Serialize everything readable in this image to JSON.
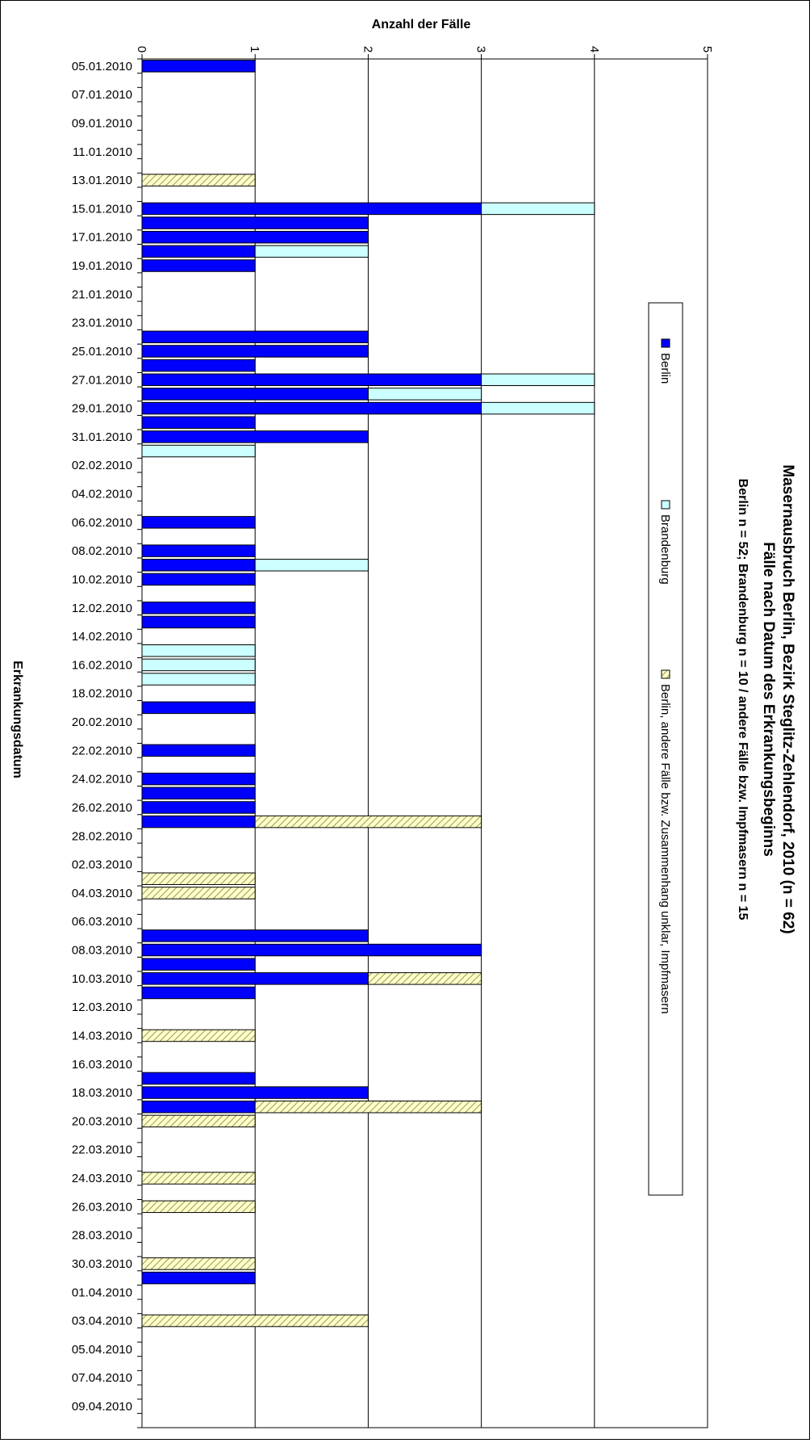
{
  "chart_data": {
    "type": "bar",
    "orientation": "horizontal",
    "stacked": true,
    "title": "Masernausbruch Berlin, Bezirk Steglitz-Zehlendorf, 2010 (n = 62)",
    "subtitle": "Fälle nach Datum des Erkrankungsbeginns",
    "subtitle2": "Berlin n = 52; Brandenburg n = 10 / andere Fälle bzw. Impfmasern n = 15",
    "xlabel": "Anzahl der Fälle",
    "ylabel": "Erkrankungsdatum",
    "xlim": [
      0,
      5
    ],
    "xticks": [
      "0",
      "1",
      "2",
      "3",
      "4",
      "5"
    ],
    "grid": true,
    "legend_position": "right",
    "categories": [
      "05.01.2010",
      "06.01.2010",
      "07.01.2010",
      "08.01.2010",
      "09.01.2010",
      "10.01.2010",
      "11.01.2010",
      "12.01.2010",
      "13.01.2010",
      "14.01.2010",
      "15.01.2010",
      "16.01.2010",
      "17.01.2010",
      "18.01.2010",
      "19.01.2010",
      "20.01.2010",
      "21.01.2010",
      "22.01.2010",
      "23.01.2010",
      "24.01.2010",
      "25.01.2010",
      "26.01.2010",
      "27.01.2010",
      "28.01.2010",
      "29.01.2010",
      "30.01.2010",
      "31.01.2010",
      "01.02.2010",
      "02.02.2010",
      "03.02.2010",
      "04.02.2010",
      "05.02.2010",
      "06.02.2010",
      "07.02.2010",
      "08.02.2010",
      "09.02.2010",
      "10.02.2010",
      "11.02.2010",
      "12.02.2010",
      "13.02.2010",
      "14.02.2010",
      "15.02.2010",
      "16.02.2010",
      "17.02.2010",
      "18.02.2010",
      "19.02.2010",
      "20.02.2010",
      "21.02.2010",
      "22.02.2010",
      "23.02.2010",
      "24.02.2010",
      "25.02.2010",
      "26.02.2010",
      "27.02.2010",
      "28.02.2010",
      "01.03.2010",
      "02.03.2010",
      "03.03.2010",
      "04.03.2010",
      "05.03.2010",
      "06.03.2010",
      "07.03.2010",
      "08.03.2010",
      "09.03.2010",
      "10.03.2010",
      "11.03.2010",
      "12.03.2010",
      "13.03.2010",
      "14.03.2010",
      "15.03.2010",
      "16.03.2010",
      "17.03.2010",
      "18.03.2010",
      "19.03.2010",
      "20.03.2010",
      "21.03.2010",
      "22.03.2010",
      "23.03.2010",
      "24.03.2010",
      "25.03.2010",
      "26.03.2010",
      "27.03.2010",
      "28.03.2010",
      "29.03.2010",
      "30.03.2010",
      "31.03.2010",
      "01.04.2010",
      "02.04.2010",
      "03.04.2010",
      "04.04.2010",
      "05.04.2010",
      "06.04.2010",
      "07.04.2010",
      "08.04.2010",
      "09.04.2010",
      "10.04.2010"
    ],
    "series": [
      {
        "name": "Berlin",
        "color": "#0000ff",
        "pattern": "solid",
        "values": [
          1,
          0,
          0,
          0,
          0,
          0,
          0,
          0,
          0,
          0,
          3,
          2,
          2,
          1,
          1,
          0,
          0,
          0,
          0,
          2,
          2,
          1,
          3,
          2,
          3,
          1,
          2,
          0,
          0,
          0,
          0,
          0,
          1,
          0,
          1,
          1,
          1,
          0,
          1,
          1,
          0,
          0,
          0,
          0,
          0,
          1,
          0,
          0,
          1,
          0,
          1,
          1,
          1,
          1,
          0,
          0,
          0,
          0,
          0,
          0,
          0,
          2,
          3,
          1,
          2,
          1,
          0,
          0,
          0,
          0,
          0,
          1,
          2,
          1,
          0,
          0,
          0,
          0,
          0,
          0,
          0,
          0,
          0,
          0,
          0,
          1,
          0,
          0,
          0,
          0,
          0,
          0,
          0,
          0,
          0,
          0
        ]
      },
      {
        "name": "Brandenburg",
        "color": "#ccffff",
        "pattern": "solid",
        "values": [
          0,
          0,
          0,
          0,
          0,
          0,
          0,
          0,
          0,
          0,
          1,
          0,
          0,
          1,
          0,
          0,
          0,
          0,
          0,
          0,
          0,
          0,
          1,
          1,
          1,
          0,
          0,
          1,
          0,
          0,
          0,
          0,
          0,
          0,
          0,
          1,
          0,
          0,
          0,
          0,
          0,
          1,
          1,
          1,
          0,
          0,
          0,
          0,
          0,
          0,
          0,
          0,
          0,
          0,
          0,
          0,
          0,
          0,
          0,
          0,
          0,
          0,
          0,
          0,
          0,
          0,
          0,
          0,
          0,
          0,
          0,
          0,
          0,
          0,
          0,
          0,
          0,
          0,
          0,
          0,
          0,
          0,
          0,
          0,
          0,
          0,
          0,
          0,
          0,
          0,
          0,
          0,
          0,
          0,
          0,
          0
        ]
      },
      {
        "name": "Berlin, andere Fälle bzw. Zusammenhang unklar, Impfmasern",
        "color": "#ffffcc",
        "pattern": "hatched",
        "values": [
          0,
          0,
          0,
          0,
          0,
          0,
          0,
          0,
          1,
          0,
          0,
          0,
          0,
          0,
          0,
          0,
          0,
          0,
          0,
          0,
          0,
          0,
          0,
          0,
          0,
          0,
          0,
          0,
          0,
          0,
          0,
          0,
          0,
          0,
          0,
          0,
          0,
          0,
          0,
          0,
          0,
          0,
          0,
          0,
          0,
          0,
          0,
          0,
          0,
          0,
          0,
          0,
          0,
          2,
          0,
          0,
          0,
          1,
          1,
          0,
          0,
          0,
          0,
          0,
          1,
          0,
          0,
          0,
          1,
          0,
          0,
          0,
          0,
          2,
          1,
          0,
          0,
          0,
          1,
          0,
          1,
          0,
          0,
          0,
          1,
          0,
          0,
          0,
          2,
          0,
          0,
          0,
          0,
          0,
          0,
          0
        ]
      }
    ]
  }
}
